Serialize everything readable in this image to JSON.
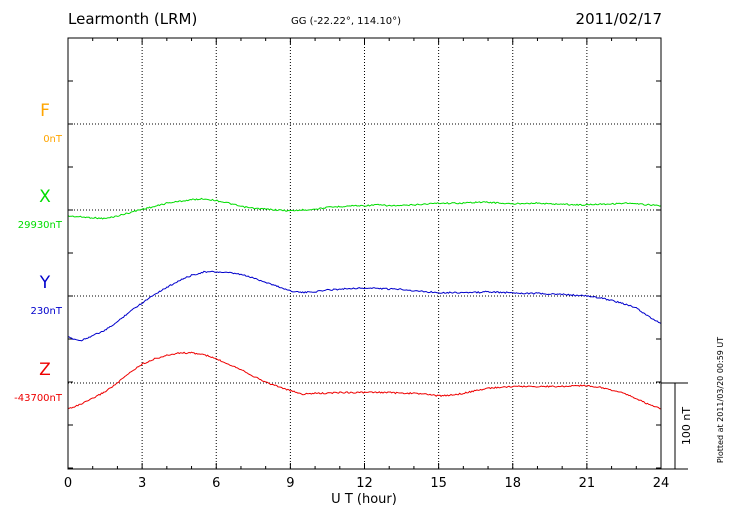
{
  "header": {
    "station": "Learmonth (LRM)",
    "coords": "GG (-22.22°, 114.10°)",
    "date": "2011/02/17"
  },
  "plotted_note": "Plotted at 2011/03/20 00:59 UT",
  "chart_data": {
    "type": "line",
    "title": "Learmonth (LRM)",
    "xlabel": "U T (hour)",
    "xlim": [
      0,
      24
    ],
    "xticks": [
      "0",
      "3",
      "6",
      "9",
      "12",
      "15",
      "18",
      "21",
      "24"
    ],
    "grid": true,
    "scale_bar_label": "100 nT",
    "scale_bar_nT": 100,
    "series": [
      {
        "name": "F",
        "baseline_label": "0nT",
        "color": "#ffa500",
        "x": [],
        "values": []
      },
      {
        "name": "X",
        "baseline_label": "29930nT",
        "color": "#00dd00",
        "x": [
          0,
          0.5,
          1,
          1.5,
          2,
          2.5,
          3,
          3.5,
          4,
          4.5,
          5,
          5.5,
          6,
          6.5,
          7,
          7.5,
          8,
          8.5,
          9,
          9.5,
          10,
          10.5,
          11,
          11.5,
          12,
          12.5,
          13,
          13.5,
          14,
          14.5,
          15,
          15.5,
          16,
          16.5,
          17,
          17.5,
          18,
          18.5,
          19,
          19.5,
          20,
          20.5,
          21,
          21.5,
          22,
          22.5,
          23,
          23.5,
          24
        ],
        "values": [
          -7,
          -8,
          -9,
          -10,
          -7,
          -3,
          1,
          4,
          8,
          10,
          12,
          13,
          11,
          8,
          4,
          2,
          1,
          0,
          -1,
          0,
          1,
          3,
          4,
          5,
          5,
          6,
          5,
          5,
          6,
          7,
          8,
          8,
          8,
          9,
          9,
          8,
          7,
          8,
          8,
          7,
          7,
          6,
          6,
          7,
          7,
          8,
          7,
          6,
          5
        ]
      },
      {
        "name": "Y",
        "baseline_label": "230nT",
        "color": "#0000cc",
        "x": [
          0,
          0.5,
          1,
          1.5,
          2,
          2.5,
          3,
          3.5,
          4,
          4.5,
          5,
          5.5,
          6,
          6.5,
          7,
          7.5,
          8,
          8.5,
          9,
          9.5,
          10,
          10.5,
          11,
          11.5,
          12,
          12.5,
          13,
          13.5,
          14,
          14.5,
          15,
          15.5,
          16,
          16.5,
          17,
          17.5,
          18,
          18.5,
          19,
          19.5,
          20,
          20.5,
          21,
          21.5,
          22,
          22.5,
          23,
          23.5,
          24
        ],
        "values": [
          -48,
          -52,
          -46,
          -40,
          -30,
          -18,
          -8,
          2,
          10,
          18,
          24,
          28,
          28,
          27,
          25,
          21,
          16,
          11,
          6,
          4,
          5,
          7,
          8,
          9,
          9,
          9,
          8,
          8,
          6,
          5,
          4,
          4,
          4,
          4,
          5,
          4,
          4,
          3,
          3,
          2,
          2,
          1,
          0,
          -2,
          -5,
          -9,
          -14,
          -24,
          -32
        ]
      },
      {
        "name": "Z",
        "baseline_label": "-43700nT",
        "color": "#ee0000",
        "x": [
          0,
          0.5,
          1,
          1.5,
          2,
          2.5,
          3,
          3.5,
          4,
          4.5,
          5,
          5.5,
          6,
          6.5,
          7,
          7.5,
          8,
          8.5,
          9,
          9.5,
          10,
          10.5,
          11,
          11.5,
          12,
          12.5,
          13,
          13.5,
          14,
          14.5,
          15,
          15.5,
          16,
          16.5,
          17,
          17.5,
          18,
          18.5,
          19,
          19.5,
          20,
          20.5,
          21,
          21.5,
          22,
          22.5,
          23,
          23.5,
          24
        ],
        "values": [
          -30,
          -25,
          -18,
          -10,
          0,
          12,
          22,
          28,
          32,
          35,
          35,
          33,
          28,
          22,
          16,
          8,
          1,
          -4,
          -9,
          -13,
          -12,
          -12,
          -11,
          -11,
          -11,
          -11,
          -11,
          -12,
          -12,
          -13,
          -15,
          -14,
          -12,
          -9,
          -6,
          -5,
          -4,
          -4,
          -4,
          -4,
          -4,
          -3,
          -3,
          -5,
          -8,
          -12,
          -18,
          -25,
          -30
        ]
      }
    ]
  }
}
